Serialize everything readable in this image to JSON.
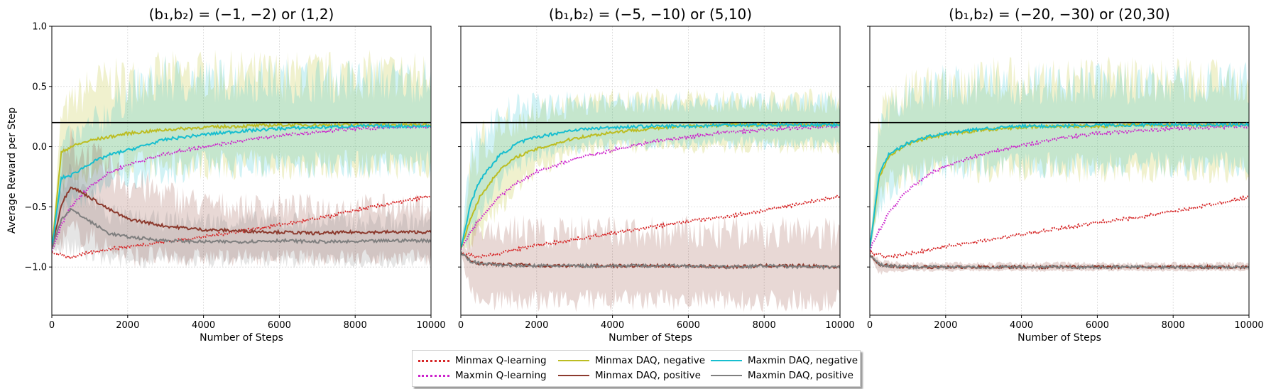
{
  "figure": {
    "ylabel": "Average Reward per Step",
    "xlabel": "Number of Steps",
    "reference_line": 0.2,
    "x_ticks": [
      "0",
      "2000",
      "4000",
      "6000",
      "8000",
      "10000"
    ],
    "y_ticks": [
      "1.0",
      "0.5",
      "0.0",
      "−0.5",
      "−1.0"
    ]
  },
  "legend": {
    "placement": "bottom-center",
    "items": [
      {
        "label": "Minmax Q-learning",
        "color": "#d62728",
        "style": "dotted"
      },
      {
        "label": "Maxmin Q-learning",
        "color": "#cc22cc",
        "style": "dotted"
      },
      {
        "label": "Minmax DAQ, negative",
        "color": "#bcbd22",
        "style": "solid"
      },
      {
        "label": "Minmax DAQ, positive",
        "color": "#8c3a2e",
        "style": "solid"
      },
      {
        "label": "Maxmin DAQ, negative",
        "color": "#17becf",
        "style": "solid"
      },
      {
        "label": "Maxmin DAQ, positive",
        "color": "#7f7f7f",
        "style": "solid"
      }
    ]
  },
  "chart_data": [
    {
      "type": "line",
      "title": "(b₁,b₂) = (−1, −2) or (1,2)",
      "xlim": [
        0,
        10000
      ],
      "ylim": [
        -1.4,
        1.0
      ],
      "grid": true,
      "x": [
        0,
        250,
        500,
        1000,
        1500,
        2000,
        3000,
        4000,
        5000,
        6000,
        7000,
        8000,
        9000,
        10000
      ],
      "series": [
        {
          "name": "Minmax Q-learning",
          "values": [
            -0.88,
            -0.9,
            -0.92,
            -0.88,
            -0.85,
            -0.83,
            -0.79,
            -0.75,
            -0.7,
            -0.65,
            -0.6,
            -0.53,
            -0.47,
            -0.41
          ]
        },
        {
          "name": "Maxmin Q-learning",
          "values": [
            -0.88,
            -0.65,
            -0.5,
            -0.33,
            -0.22,
            -0.15,
            -0.06,
            0.0,
            0.05,
            0.09,
            0.12,
            0.15,
            0.16,
            0.17
          ]
        },
        {
          "name": "Minmax DAQ, negative",
          "values": [
            -0.85,
            -0.05,
            0.0,
            0.05,
            0.08,
            0.11,
            0.14,
            0.16,
            0.17,
            0.18,
            0.18,
            0.18,
            0.18,
            0.18
          ]
        },
        {
          "name": "Minmax DAQ, positive",
          "values": [
            -0.85,
            -0.48,
            -0.33,
            -0.42,
            -0.52,
            -0.6,
            -0.66,
            -0.69,
            -0.7,
            -0.71,
            -0.72,
            -0.71,
            -0.71,
            -0.71
          ]
        },
        {
          "name": "Maxmin DAQ, negative",
          "values": [
            -0.85,
            -0.26,
            -0.24,
            -0.14,
            -0.07,
            -0.03,
            0.06,
            0.1,
            0.13,
            0.15,
            0.16,
            0.17,
            0.17,
            0.17
          ]
        },
        {
          "name": "Maxmin DAQ, positive",
          "values": [
            -0.85,
            -0.6,
            -0.52,
            -0.62,
            -0.72,
            -0.75,
            -0.78,
            -0.79,
            -0.79,
            -0.78,
            -0.79,
            -0.79,
            -0.78,
            -0.78
          ]
        }
      ],
      "bands": [
        {
          "series": "Minmax DAQ, negative",
          "low": [
            -0.85,
            -0.3,
            -0.25,
            -0.2,
            -0.15,
            -0.15,
            -0.15,
            -0.15,
            -0.15,
            -0.15,
            -0.15,
            -0.15,
            -0.15,
            -0.15
          ],
          "high": [
            -0.85,
            0.25,
            0.35,
            0.5,
            0.55,
            0.55,
            0.6,
            0.6,
            0.6,
            0.6,
            0.6,
            0.6,
            0.6,
            0.6
          ]
        },
        {
          "series": "Maxmin DAQ, negative",
          "low": [
            -0.85,
            -0.5,
            -0.45,
            -0.4,
            -0.3,
            -0.25,
            -0.2,
            -0.15,
            -0.15,
            -0.15,
            -0.15,
            -0.15,
            -0.15,
            -0.15
          ],
          "high": [
            -0.85,
            0.0,
            0.05,
            0.15,
            0.3,
            0.45,
            0.55,
            0.55,
            0.55,
            0.55,
            0.55,
            0.55,
            0.55,
            0.55
          ]
        },
        {
          "series": "Minmax DAQ, positive",
          "low": [
            -0.85,
            -0.8,
            -0.7,
            -0.75,
            -0.85,
            -0.9,
            -0.92,
            -0.92,
            -0.92,
            -0.92,
            -0.92,
            -0.92,
            -0.92,
            -0.92
          ],
          "high": [
            -0.85,
            -0.2,
            0.0,
            -0.1,
            -0.2,
            -0.3,
            -0.4,
            -0.48,
            -0.5,
            -0.5,
            -0.5,
            -0.5,
            -0.5,
            -0.5
          ]
        },
        {
          "series": "Maxmin DAQ, positive",
          "low": [
            -0.85,
            -0.85,
            -0.85,
            -0.9,
            -0.95,
            -0.95,
            -0.95,
            -0.95,
            -0.95,
            -0.95,
            -0.95,
            -0.95,
            -0.95,
            -0.95
          ],
          "high": [
            -0.85,
            -0.35,
            -0.25,
            -0.4,
            -0.55,
            -0.6,
            -0.62,
            -0.62,
            -0.62,
            -0.62,
            -0.62,
            -0.62,
            -0.62,
            -0.62
          ]
        }
      ]
    },
    {
      "type": "line",
      "title": "(b₁,b₂) = (−5, −10) or (5,10)",
      "xlim": [
        0,
        10000
      ],
      "ylim": [
        -1.4,
        1.0
      ],
      "grid": true,
      "x": [
        0,
        250,
        500,
        1000,
        1500,
        2000,
        3000,
        4000,
        5000,
        6000,
        7000,
        8000,
        9000,
        10000
      ],
      "series": [
        {
          "name": "Minmax Q-learning",
          "values": [
            -0.88,
            -0.9,
            -0.91,
            -0.89,
            -0.85,
            -0.82,
            -0.77,
            -0.72,
            -0.67,
            -0.62,
            -0.58,
            -0.53,
            -0.47,
            -0.41
          ]
        },
        {
          "name": "Maxmin Q-learning",
          "values": [
            -0.85,
            -0.72,
            -0.6,
            -0.42,
            -0.3,
            -0.21,
            -0.1,
            -0.03,
            0.04,
            0.08,
            0.12,
            0.14,
            0.16,
            0.17
          ]
        },
        {
          "name": "Minmax DAQ, negative",
          "values": [
            -0.85,
            -0.6,
            -0.42,
            -0.2,
            -0.08,
            -0.02,
            0.07,
            0.12,
            0.15,
            0.17,
            0.18,
            0.18,
            0.18,
            0.18
          ]
        },
        {
          "name": "Minmax DAQ, positive",
          "values": [
            -0.88,
            -0.95,
            -0.97,
            -0.98,
            -0.98,
            -0.99,
            -0.99,
            -0.99,
            -0.99,
            -0.99,
            -1.0,
            -0.99,
            -0.99,
            -1.0
          ]
        },
        {
          "name": "Maxmin DAQ, negative",
          "values": [
            -0.85,
            -0.48,
            -0.28,
            -0.08,
            0.03,
            0.08,
            0.14,
            0.16,
            0.17,
            0.17,
            0.18,
            0.18,
            0.18,
            0.18
          ]
        },
        {
          "name": "Maxmin DAQ, positive",
          "values": [
            -0.88,
            -0.95,
            -0.97,
            -0.98,
            -0.99,
            -0.99,
            -0.99,
            -0.99,
            -0.99,
            -0.99,
            -1.0,
            -0.99,
            -1.0,
            -1.0
          ]
        }
      ],
      "bands": [
        {
          "series": "Minmax DAQ, negative",
          "low": [
            -0.85,
            -0.8,
            -0.7,
            -0.5,
            -0.3,
            -0.2,
            -0.05,
            0.0,
            0.0,
            0.0,
            0.0,
            0.0,
            0.0,
            0.0
          ],
          "high": [
            -0.85,
            -0.2,
            0.0,
            0.15,
            0.25,
            0.3,
            0.35,
            0.38,
            0.38,
            0.38,
            0.38,
            0.38,
            0.38,
            0.38
          ]
        },
        {
          "series": "Maxmin DAQ, negative",
          "low": [
            -0.85,
            -0.75,
            -0.55,
            -0.3,
            -0.15,
            -0.05,
            0.0,
            0.02,
            0.03,
            0.03,
            0.03,
            0.03,
            0.03,
            0.03
          ],
          "high": [
            -0.85,
            -0.1,
            0.1,
            0.25,
            0.32,
            0.35,
            0.37,
            0.37,
            0.37,
            0.37,
            0.37,
            0.37,
            0.37,
            0.37
          ]
        },
        {
          "series": "Minmax DAQ, positive",
          "low": [
            -0.88,
            -1.2,
            -1.25,
            -1.28,
            -1.28,
            -1.28,
            -1.28,
            -1.28,
            -1.28,
            -1.28,
            -1.28,
            -1.28,
            -1.28,
            -1.28
          ],
          "high": [
            -0.88,
            -0.75,
            -0.72,
            -0.7,
            -0.7,
            -0.72,
            -0.72,
            -0.72,
            -0.72,
            -0.72,
            -0.72,
            -0.72,
            -0.72,
            -0.72
          ]
        }
      ]
    },
    {
      "type": "line",
      "title": "(b₁,b₂) = (−20, −30) or (20,30)",
      "xlim": [
        0,
        10000
      ],
      "ylim": [
        -1.4,
        1.0
      ],
      "grid": true,
      "x": [
        0,
        250,
        500,
        1000,
        1500,
        2000,
        3000,
        4000,
        5000,
        6000,
        7000,
        8000,
        9000,
        10000
      ],
      "series": [
        {
          "name": "Minmax Q-learning",
          "values": [
            -0.88,
            -0.9,
            -0.92,
            -0.89,
            -0.86,
            -0.83,
            -0.78,
            -0.73,
            -0.68,
            -0.63,
            -0.59,
            -0.54,
            -0.48,
            -0.42
          ]
        },
        {
          "name": "Maxmin Q-learning",
          "values": [
            -0.85,
            -0.7,
            -0.55,
            -0.36,
            -0.24,
            -0.16,
            -0.06,
            0.01,
            0.07,
            0.11,
            0.13,
            0.15,
            0.16,
            0.17
          ]
        },
        {
          "name": "Minmax DAQ, negative",
          "values": [
            -0.85,
            -0.25,
            -0.08,
            0.02,
            0.07,
            0.1,
            0.14,
            0.16,
            0.17,
            0.17,
            0.18,
            0.18,
            0.18,
            0.18
          ]
        },
        {
          "name": "Minmax DAQ, positive",
          "values": [
            -0.9,
            -0.98,
            -0.99,
            -1.0,
            -1.0,
            -1.0,
            -1.0,
            -1.0,
            -1.0,
            -1.0,
            -1.0,
            -1.0,
            -1.0,
            -1.0
          ]
        },
        {
          "name": "Maxmin DAQ, negative",
          "values": [
            -0.85,
            -0.22,
            -0.06,
            0.03,
            0.08,
            0.11,
            0.15,
            0.17,
            0.17,
            0.18,
            0.18,
            0.18,
            0.18,
            0.18
          ]
        },
        {
          "name": "Maxmin DAQ, positive",
          "values": [
            -0.9,
            -0.98,
            -0.99,
            -1.0,
            -1.0,
            -1.0,
            -1.0,
            -1.0,
            -1.0,
            -1.0,
            -1.0,
            -1.0,
            -1.0,
            -1.0
          ]
        }
      ],
      "bands": [
        {
          "series": "Minmax DAQ, negative",
          "low": [
            -0.85,
            -0.45,
            -0.3,
            -0.22,
            -0.2,
            -0.18,
            -0.18,
            -0.18,
            -0.18,
            -0.18,
            -0.18,
            -0.18,
            -0.18,
            -0.18
          ],
          "high": [
            -0.85,
            0.2,
            0.35,
            0.45,
            0.5,
            0.52,
            0.55,
            0.55,
            0.55,
            0.55,
            0.55,
            0.55,
            0.55,
            0.55
          ]
        },
        {
          "series": "Maxmin DAQ, negative",
          "low": [
            -0.85,
            -0.5,
            -0.35,
            -0.25,
            -0.2,
            -0.18,
            -0.15,
            -0.15,
            -0.15,
            -0.15,
            -0.15,
            -0.15,
            -0.15,
            -0.15
          ],
          "high": [
            -0.85,
            0.15,
            0.3,
            0.42,
            0.48,
            0.5,
            0.52,
            0.52,
            0.52,
            0.52,
            0.52,
            0.52,
            0.52,
            0.52
          ]
        },
        {
          "series": "Minmax DAQ, positive",
          "low": [
            -0.9,
            -1.05,
            -1.04,
            -1.03,
            -1.03,
            -1.03,
            -1.03,
            -1.03,
            -1.03,
            -1.03,
            -1.03,
            -1.03,
            -1.03,
            -1.03
          ],
          "high": [
            -0.9,
            -0.93,
            -0.96,
            -0.97,
            -0.97,
            -0.97,
            -0.97,
            -0.97,
            -0.97,
            -0.97,
            -0.97,
            -0.97,
            -0.97,
            -0.97
          ]
        }
      ]
    }
  ]
}
